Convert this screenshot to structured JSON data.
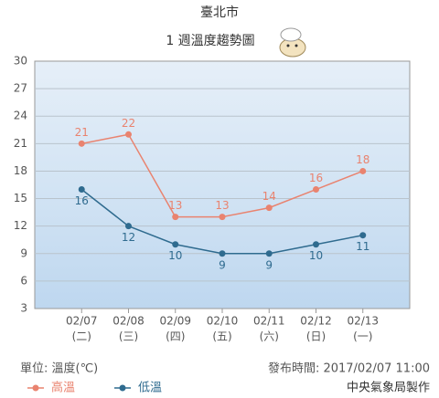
{
  "chart_data": {
    "type": "line",
    "title": "臺北市",
    "subtitle": "1 週溫度趨勢圖",
    "categories": [
      "02/07",
      "02/08",
      "02/09",
      "02/10",
      "02/11",
      "02/12",
      "02/13"
    ],
    "weekdays": [
      "(二)",
      "(三)",
      "(四)",
      "(五)",
      "(六)",
      "(日)",
      "(一)"
    ],
    "series": [
      {
        "name": "高溫",
        "color": "#e9836f",
        "values": [
          21,
          22,
          13,
          13,
          14,
          16,
          18
        ]
      },
      {
        "name": "低溫",
        "color": "#2f6b8f",
        "values": [
          16,
          12,
          10,
          9,
          9,
          10,
          11
        ]
      }
    ],
    "ylim": [
      3,
      30
    ],
    "yticks": [
      3,
      6,
      9,
      12,
      15,
      18,
      21,
      24,
      27,
      30
    ],
    "grid": true,
    "unit_label": "單位: 溫度(℃)",
    "issued": "發布時間: 2017/02/07 11:00",
    "credit": "中央氣象局製作"
  }
}
